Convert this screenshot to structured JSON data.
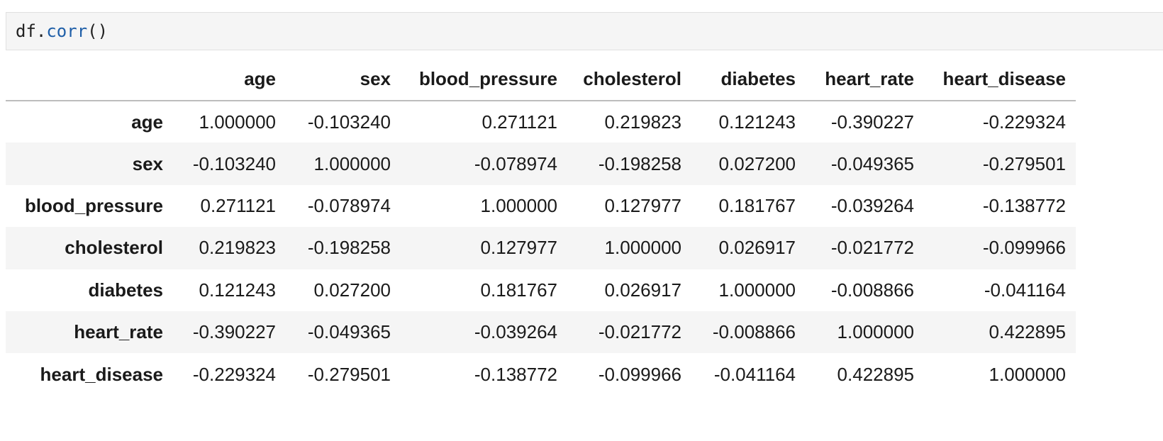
{
  "code_cell": {
    "object": "df",
    "dot": ".",
    "method": "corr",
    "parens": "()"
  },
  "table": {
    "columns": [
      "age",
      "sex",
      "blood_pressure",
      "cholesterol",
      "diabetes",
      "heart_rate",
      "heart_disease"
    ],
    "rows": [
      {
        "index": "age",
        "values": [
          "1.000000",
          "-0.103240",
          "0.271121",
          "0.219823",
          "0.121243",
          "-0.390227",
          "-0.229324"
        ]
      },
      {
        "index": "sex",
        "values": [
          "-0.103240",
          "1.000000",
          "-0.078974",
          "-0.198258",
          "0.027200",
          "-0.049365",
          "-0.279501"
        ]
      },
      {
        "index": "blood_pressure",
        "values": [
          "0.271121",
          "-0.078974",
          "1.000000",
          "0.127977",
          "0.181767",
          "-0.039264",
          "-0.138772"
        ]
      },
      {
        "index": "cholesterol",
        "values": [
          "0.219823",
          "-0.198258",
          "0.127977",
          "1.000000",
          "0.026917",
          "-0.021772",
          "-0.099966"
        ]
      },
      {
        "index": "diabetes",
        "values": [
          "0.121243",
          "0.027200",
          "0.181767",
          "0.026917",
          "1.000000",
          "-0.008866",
          "-0.041164"
        ]
      },
      {
        "index": "heart_rate",
        "values": [
          "-0.390227",
          "-0.049365",
          "-0.039264",
          "-0.021772",
          "-0.008866",
          "1.000000",
          "0.422895"
        ]
      },
      {
        "index": "heart_disease",
        "values": [
          "-0.229324",
          "-0.279501",
          "-0.138772",
          "-0.099966",
          "-0.041164",
          "0.422895",
          "1.000000"
        ]
      }
    ]
  }
}
